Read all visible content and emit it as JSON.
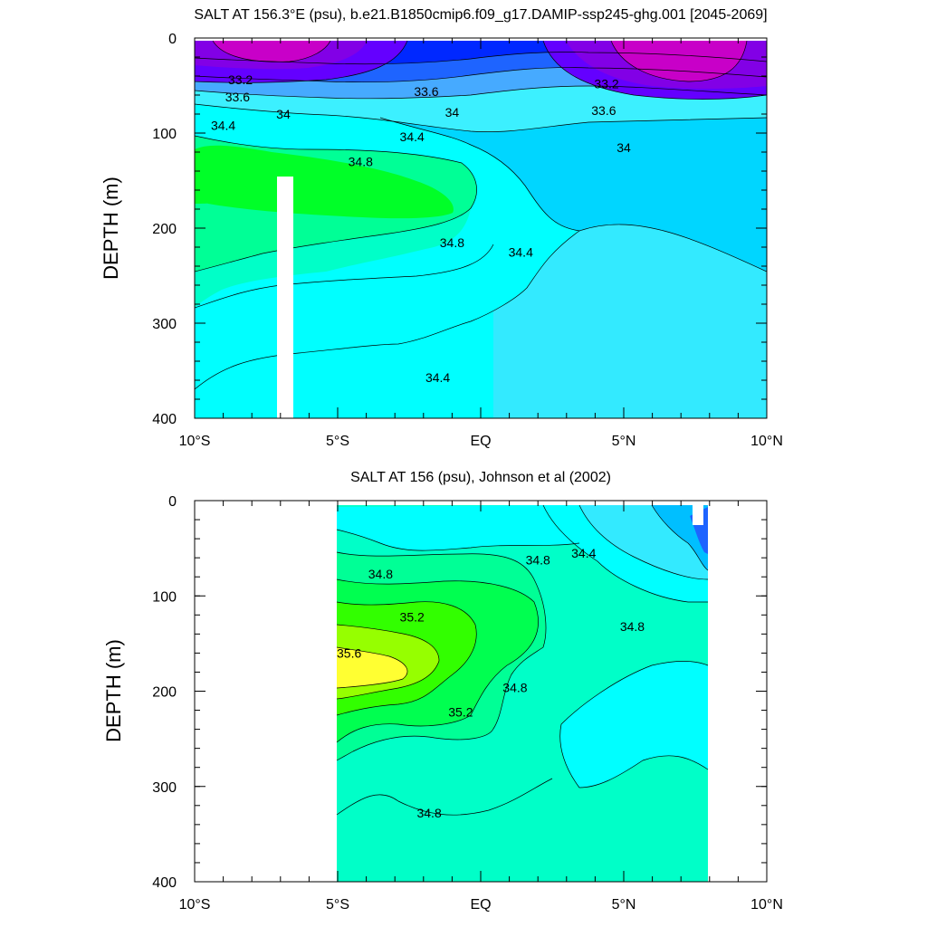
{
  "chart_data": [
    {
      "type": "contour",
      "title": "SALT AT 156.3°E (psu), b.e21.B1850cmip6.f09_g17.DAMIP-ssp245-ghg.001 [2045-2069]",
      "ylabel": "DEPTH (m)",
      "xlim": [
        -10,
        10
      ],
      "ylim": [
        0,
        400
      ],
      "y_reversed": true,
      "x_ticks": [
        {
          "value": -10,
          "label": "10°S"
        },
        {
          "value": -5,
          "label": "5°S"
        },
        {
          "value": 0,
          "label": "EQ"
        },
        {
          "value": 5,
          "label": "5°N"
        },
        {
          "value": 10,
          "label": "10°N"
        }
      ],
      "y_ticks": [
        {
          "value": 0,
          "label": "0"
        },
        {
          "value": 100,
          "label": "100"
        },
        {
          "value": 200,
          "label": "200"
        },
        {
          "value": 300,
          "label": "300"
        },
        {
          "value": 400,
          "label": "400"
        }
      ],
      "data_extent": {
        "x": [
          -10,
          10
        ],
        "y": [
          3,
          400
        ]
      },
      "missing_columns": [
        {
          "x": [
            -7.1,
            -6.6
          ],
          "y": [
            145,
            400
          ]
        }
      ],
      "contour_labels": [
        {
          "text": "33.2",
          "x": -8.4,
          "y": 44
        },
        {
          "text": "33.6",
          "x": -8.5,
          "y": 62
        },
        {
          "text": "34",
          "x": -6.9,
          "y": 80
        },
        {
          "text": "34.4",
          "x": -9.0,
          "y": 92
        },
        {
          "text": "33.6",
          "x": -1.9,
          "y": 56
        },
        {
          "text": "34",
          "x": -1.0,
          "y": 78
        },
        {
          "text": "34.4",
          "x": -2.4,
          "y": 104
        },
        {
          "text": "34.8",
          "x": -4.2,
          "y": 130
        },
        {
          "text": "34.8",
          "x": -1.0,
          "y": 215
        },
        {
          "text": "34.4",
          "x": 1.4,
          "y": 225
        },
        {
          "text": "34.4",
          "x": -1.5,
          "y": 357
        },
        {
          "text": "33.2",
          "x": 4.4,
          "y": 48
        },
        {
          "text": "33.6",
          "x": 4.3,
          "y": 76
        },
        {
          "text": "34",
          "x": 5.0,
          "y": 115
        }
      ]
    },
    {
      "type": "contour",
      "title": "SALT AT 156 (psu), Johnson et al (2002)",
      "ylabel": "DEPTH (m)",
      "xlim": [
        -10,
        10
      ],
      "ylim": [
        0,
        400
      ],
      "y_reversed": true,
      "x_ticks": [
        {
          "value": -10,
          "label": "10°S"
        },
        {
          "value": -5,
          "label": "5°S"
        },
        {
          "value": 0,
          "label": "EQ"
        },
        {
          "value": 5,
          "label": "5°N"
        },
        {
          "value": 10,
          "label": "10°N"
        }
      ],
      "y_ticks": [
        {
          "value": 0,
          "label": "0"
        },
        {
          "value": 100,
          "label": "100"
        },
        {
          "value": 200,
          "label": "200"
        },
        {
          "value": 300,
          "label": "300"
        },
        {
          "value": 400,
          "label": "400"
        }
      ],
      "data_extent": {
        "x": [
          -5,
          8
        ],
        "y": [
          5,
          400
        ]
      },
      "contour_labels": [
        {
          "text": "34.8",
          "x": -3.5,
          "y": 77
        },
        {
          "text": "35.2",
          "x": -2.4,
          "y": 122
        },
        {
          "text": "35.6",
          "x": -4.6,
          "y": 160
        },
        {
          "text": "35.2",
          "x": -0.7,
          "y": 222
        },
        {
          "text": "34.8",
          "x": 2.0,
          "y": 62
        },
        {
          "text": "34.4",
          "x": 3.6,
          "y": 55
        },
        {
          "text": "34.8",
          "x": 5.3,
          "y": 132
        },
        {
          "text": "34.8",
          "x": 1.2,
          "y": 196
        },
        {
          "text": "34.8",
          "x": -1.8,
          "y": 328
        }
      ]
    }
  ]
}
